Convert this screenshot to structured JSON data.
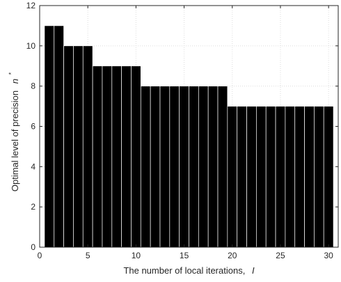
{
  "chart_data": {
    "type": "bar",
    "x": [
      1,
      2,
      3,
      4,
      5,
      6,
      7,
      8,
      9,
      10,
      11,
      12,
      13,
      14,
      15,
      16,
      17,
      18,
      19,
      20,
      21,
      22,
      23,
      24,
      25,
      26,
      27,
      28,
      29,
      30
    ],
    "values": [
      11,
      11,
      10,
      10,
      10,
      9,
      9,
      9,
      9,
      9,
      8,
      8,
      8,
      8,
      8,
      8,
      8,
      8,
      8,
      7,
      7,
      7,
      7,
      7,
      7,
      7,
      7,
      7,
      7,
      7
    ],
    "xlabel": {
      "text": "The number of local iterations,",
      "var": "I"
    },
    "ylabel": {
      "text": "Optimal level of precision",
      "var": "n",
      "sup": "*"
    },
    "xlim": [
      0,
      31
    ],
    "ylim": [
      0,
      12
    ],
    "xticks": [
      0,
      5,
      10,
      15,
      20,
      25,
      30
    ],
    "yticks": [
      0,
      2,
      4,
      6,
      8,
      10,
      12
    ],
    "grid": true,
    "bar_color": "#000000",
    "bar_edge_color": "#ffffff"
  }
}
